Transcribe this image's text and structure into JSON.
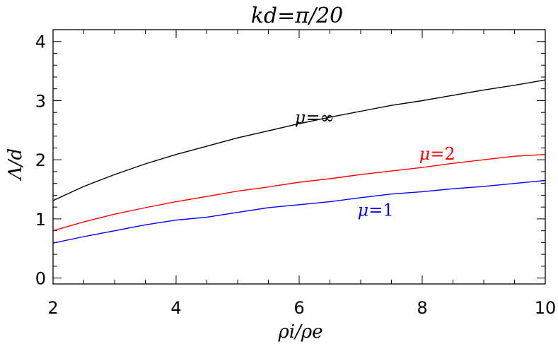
{
  "chart_data": {
    "type": "line",
    "title": "kd=π/20",
    "xlabel": "ρi/ρe",
    "ylabel": "Λ/d",
    "xlim": [
      2,
      10
    ],
    "ylim": [
      -0.1,
      4.2
    ],
    "xticks": [
      2,
      4,
      6,
      8,
      10
    ],
    "yticks": [
      0,
      1,
      2,
      3,
      4
    ],
    "grid": false,
    "legend": "none",
    "x": [
      2,
      2.5,
      3,
      3.5,
      4,
      4.5,
      5,
      5.5,
      6,
      6.5,
      7,
      7.5,
      8,
      8.5,
      9,
      9.5,
      10
    ],
    "series": [
      {
        "name": "μ=∞",
        "color": "#000000",
        "values": [
          1.31,
          1.55,
          1.75,
          1.93,
          2.09,
          2.23,
          2.37,
          2.49,
          2.61,
          2.72,
          2.82,
          2.92,
          3.0,
          3.09,
          3.18,
          3.26,
          3.35
        ]
      },
      {
        "name": "μ=2",
        "color": "#ff0000",
        "values": [
          0.8,
          0.95,
          1.08,
          1.19,
          1.29,
          1.38,
          1.47,
          1.54,
          1.62,
          1.68,
          1.75,
          1.81,
          1.87,
          1.94,
          2.0,
          2.06,
          2.09
        ]
      },
      {
        "name": "μ=1",
        "color": "#0000ff",
        "values": [
          0.59,
          0.7,
          0.8,
          0.9,
          0.98,
          1.03,
          1.11,
          1.19,
          1.24,
          1.29,
          1.36,
          1.42,
          1.46,
          1.51,
          1.55,
          1.6,
          1.65
        ]
      }
    ],
    "annotations": [
      {
        "text_main": "μ",
        "text_rest": "=∞",
        "color": "#000000",
        "at_x": 5.93,
        "at_y": 2.62
      },
      {
        "text_main": "μ",
        "text_rest": "=2",
        "color": "#ff0000",
        "at_x": 7.95,
        "at_y": 2.0
      },
      {
        "text_main": "μ",
        "text_rest": "=1",
        "color": "#0000ff",
        "at_x": 6.95,
        "at_y": 1.05
      }
    ]
  }
}
